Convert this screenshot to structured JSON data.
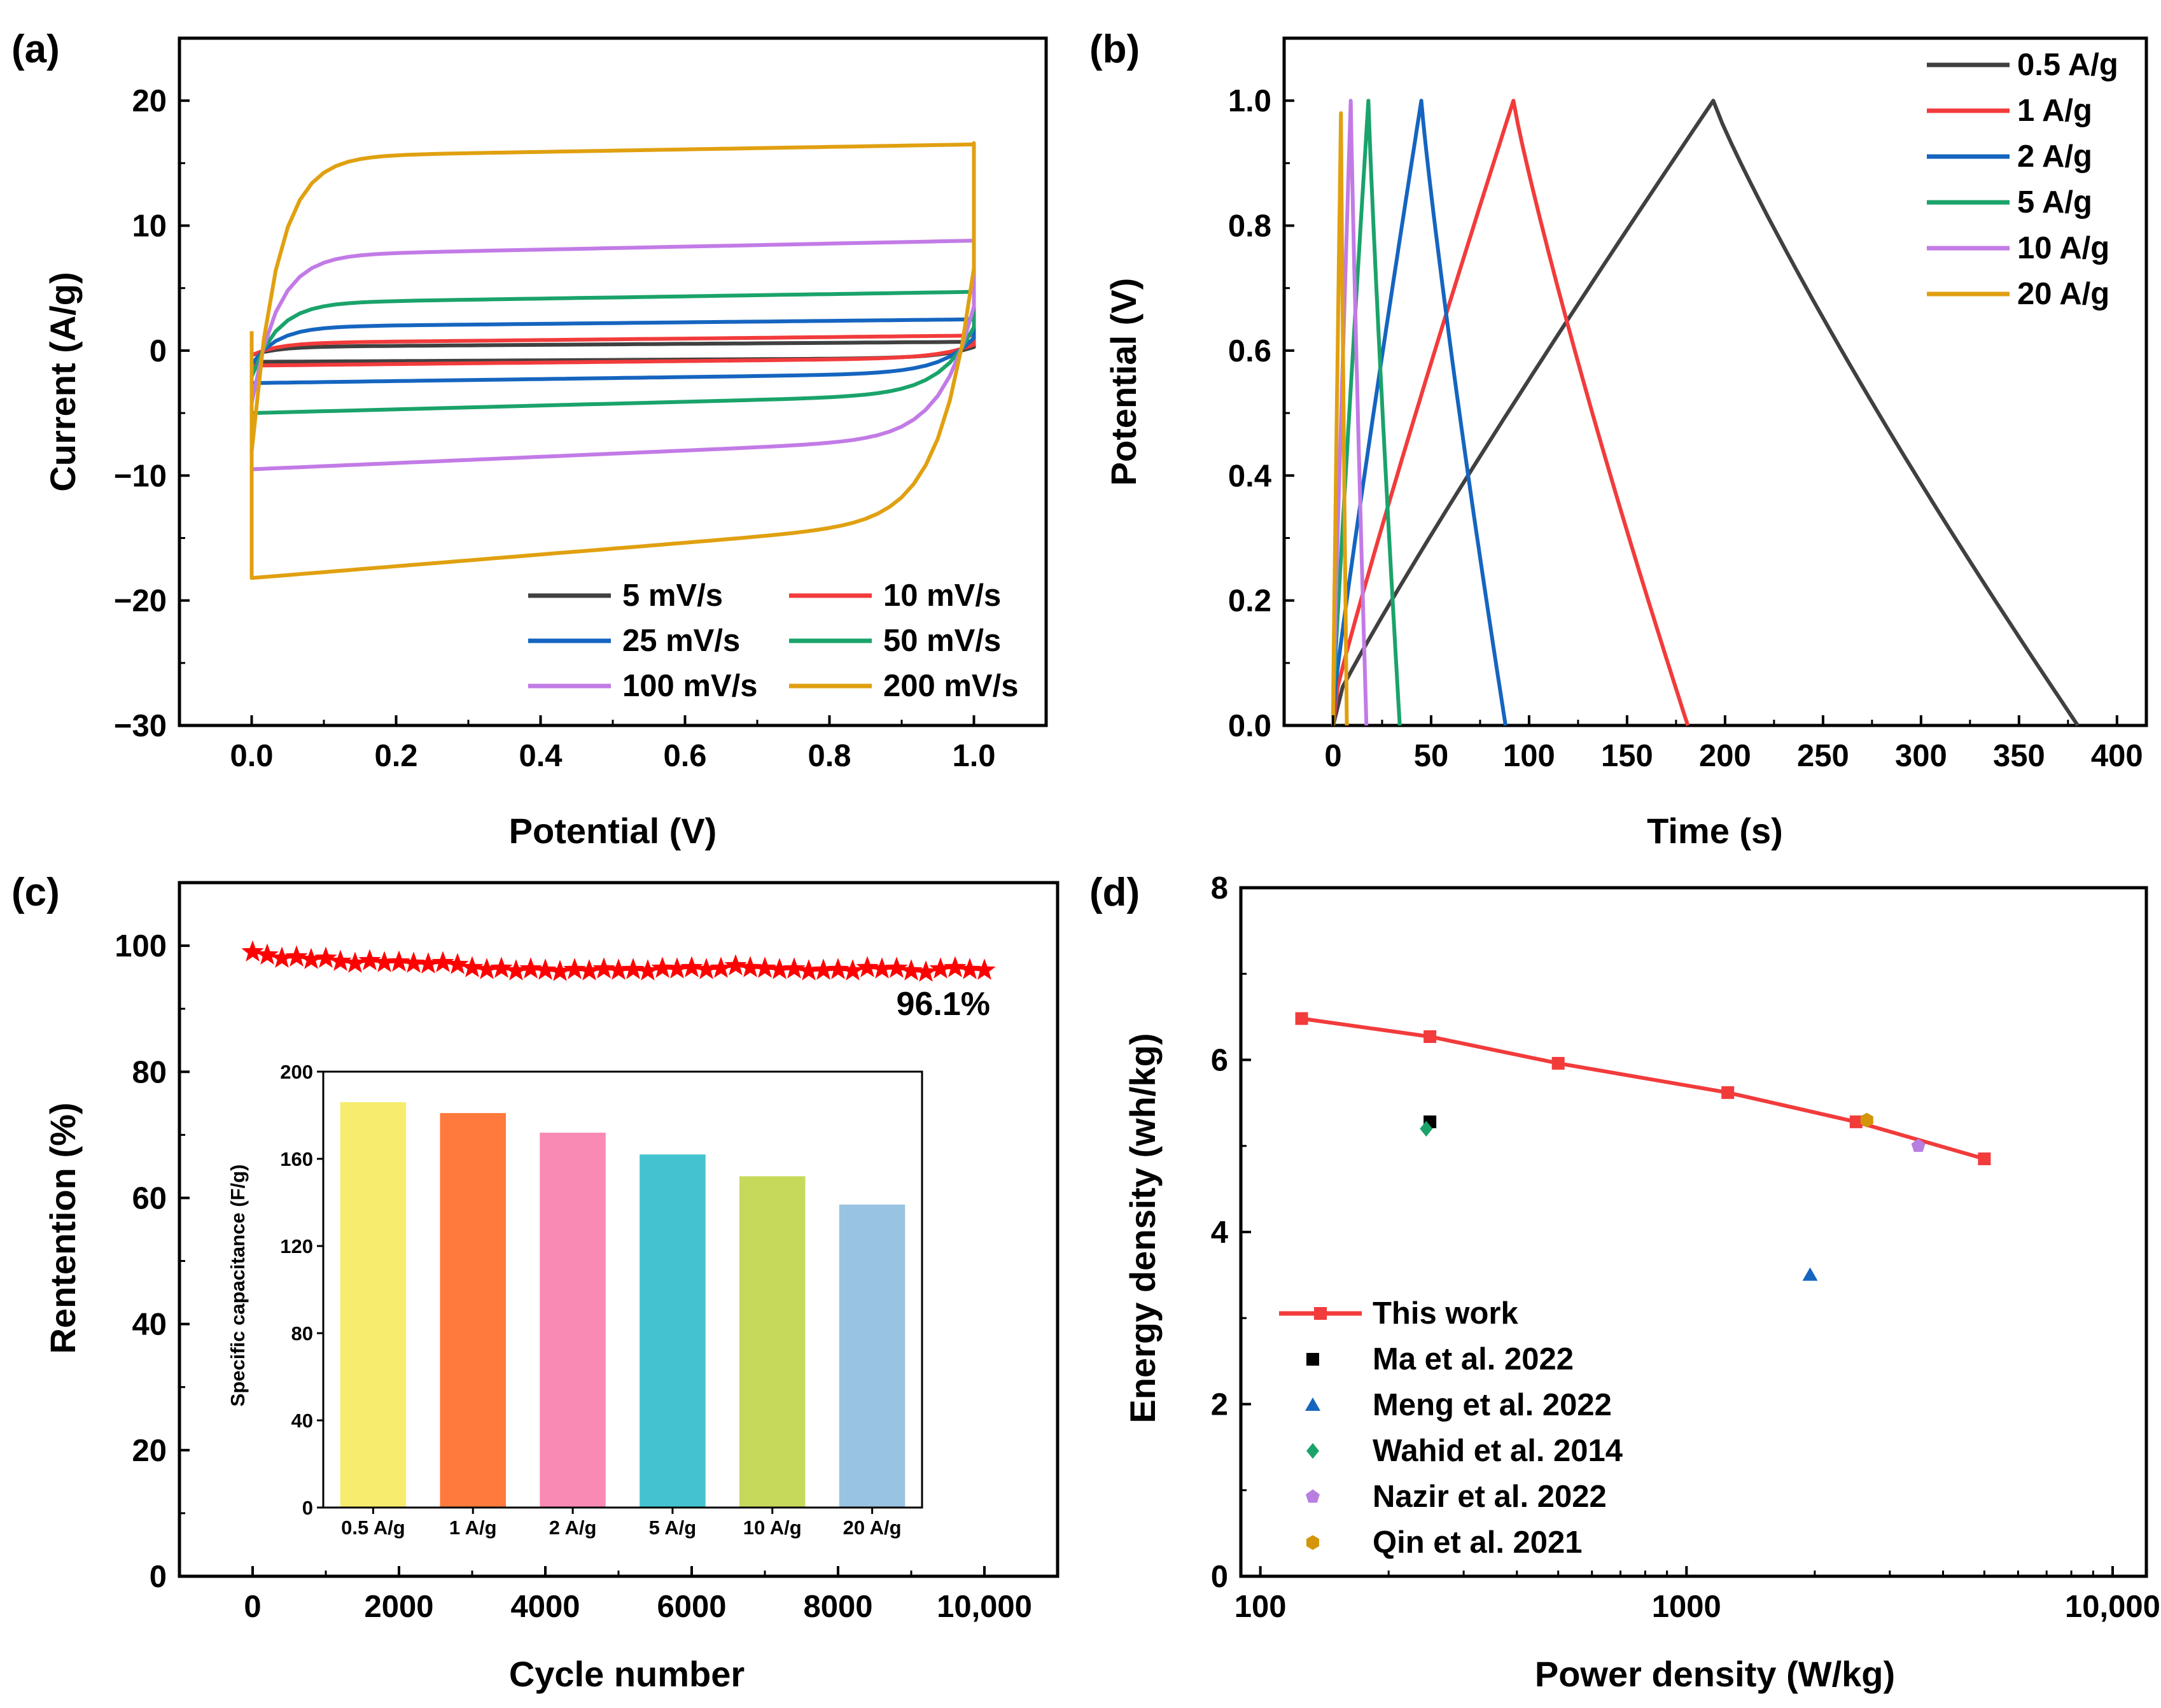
{
  "chart_data": [
    {
      "id": "a",
      "panel_label": "(a)",
      "type": "line",
      "title": "",
      "xlabel": "Potential (V)",
      "ylabel": "Current (A/g)",
      "xlim": [
        -0.1,
        1.1
      ],
      "ylim": [
        -30,
        25
      ],
      "xticks": [
        0.0,
        0.2,
        0.4,
        0.6,
        0.8,
        1.0
      ],
      "xtick_labels": [
        "0.0",
        "0.2",
        "0.4",
        "0.6",
        "0.8",
        "1.0"
      ],
      "yticks": [
        -30,
        -20,
        -10,
        0,
        10,
        20
      ],
      "ytick_labels": [
        "−30",
        "−20",
        "−10",
        "0",
        "10",
        "20"
      ],
      "legend_position": "bottom-right",
      "series": [
        {
          "name": "5 mV/s",
          "color": "#404040",
          "loop": {
            "anodic_start": 0.3,
            "anodic_end": 0.7,
            "cathodic_start": -0.6,
            "cathodic_end": -0.9,
            "peak": 0.9
          }
        },
        {
          "name": "10 mV/s",
          "color": "#f23b3b",
          "loop": {
            "anodic_start": 0.6,
            "anodic_end": 1.2,
            "cathodic_start": -0.6,
            "cathodic_end": -1.2,
            "peak": 1.3
          }
        },
        {
          "name": "25 mV/s",
          "color": "#1565c0",
          "loop": {
            "anodic_start": 1.9,
            "anodic_end": 2.5,
            "cathodic_start": -1.8,
            "cathodic_end": -2.6,
            "peak": 2.6
          }
        },
        {
          "name": "50 mV/s",
          "color": "#1aa36a",
          "loop": {
            "anodic_start": 3.8,
            "anodic_end": 4.7,
            "cathodic_start": -3.5,
            "cathodic_end": -5.0,
            "peak": 4.9
          }
        },
        {
          "name": "100 mV/s",
          "color": "#c27be6",
          "loop": {
            "anodic_start": 7.6,
            "anodic_end": 8.8,
            "cathodic_start": -7.0,
            "cathodic_end": -9.5,
            "peak": 8.9
          }
        },
        {
          "name": "200 mV/s",
          "color": "#e0a010",
          "loop": {
            "anodic_start": 15.5,
            "anodic_end": 16.5,
            "cathodic_start": -13.5,
            "cathodic_end": -18.2,
            "peak": 16.6
          }
        }
      ]
    },
    {
      "id": "b",
      "panel_label": "(b)",
      "type": "line",
      "title": "",
      "xlabel": "Time (s)",
      "ylabel": "Potential (V)",
      "xlim": [
        -25,
        415
      ],
      "ylim": [
        0,
        1.1
      ],
      "xticks": [
        0,
        50,
        100,
        150,
        200,
        250,
        300,
        350,
        400
      ],
      "xtick_labels": [
        "0",
        "50",
        "100",
        "150",
        "200",
        "250",
        "300",
        "350",
        "400"
      ],
      "yticks": [
        0.0,
        0.2,
        0.4,
        0.6,
        0.8,
        1.0
      ],
      "ytick_labels": [
        "0.0",
        "0.2",
        "0.4",
        "0.6",
        "0.8",
        "1.0"
      ],
      "legend_position": "top-right",
      "series": [
        {
          "name": "0.5 A/g",
          "color": "#404040",
          "t_peak": 194,
          "t_end": 380,
          "v_peak": 1.0
        },
        {
          "name": "1 A/g",
          "color": "#f23b3b",
          "t_peak": 92,
          "t_end": 181,
          "v_peak": 1.0
        },
        {
          "name": "2 A/g",
          "color": "#1565c0",
          "t_peak": 45,
          "t_end": 88,
          "v_peak": 1.0
        },
        {
          "name": "5 A/g",
          "color": "#1aa36a",
          "t_peak": 18,
          "t_end": 34,
          "v_peak": 1.0
        },
        {
          "name": "10 A/g",
          "color": "#c27be6",
          "t_peak": 9,
          "t_end": 17,
          "v_peak": 1.0
        },
        {
          "name": "20 A/g",
          "color": "#e0a010",
          "t_peak": 4,
          "t_end": 7,
          "v_peak": 0.98
        }
      ]
    },
    {
      "id": "c",
      "panel_label": "(c)",
      "type": "scatter",
      "title": "",
      "xlabel": "Cycle number",
      "ylabel": "Rentention (%)",
      "xlim": [
        -1000,
        11000
      ],
      "ylim": [
        0,
        110
      ],
      "xticks": [
        0,
        2000,
        4000,
        6000,
        8000,
        10000
      ],
      "xtick_labels": [
        "0",
        "2000",
        "4000",
        "6000",
        "8000",
        "10,000"
      ],
      "yticks": [
        0,
        20,
        40,
        60,
        80,
        100
      ],
      "ytick_labels": [
        "0",
        "20",
        "40",
        "60",
        "80",
        "100"
      ],
      "annotation": "96.1%",
      "series": [
        {
          "name": "Retention",
          "color": "#ff0000",
          "x": [
            0,
            200,
            400,
            600,
            800,
            1000,
            1200,
            1400,
            1600,
            1800,
            2000,
            2200,
            2400,
            2600,
            2800,
            3000,
            3200,
            3400,
            3600,
            3800,
            4000,
            4200,
            4400,
            4600,
            4800,
            5000,
            5200,
            5400,
            5600,
            5800,
            6000,
            6200,
            6400,
            6600,
            6800,
            7000,
            7200,
            7400,
            7600,
            7800,
            8000,
            8200,
            8400,
            8600,
            8800,
            9000,
            9200,
            9400,
            9600,
            9800,
            10000
          ],
          "y": [
            99.0,
            98.5,
            98.0,
            98.2,
            97.8,
            98.0,
            97.5,
            97.2,
            97.6,
            97.3,
            97.4,
            97.2,
            97.1,
            97.3,
            97.0,
            96.5,
            96.2,
            96.4,
            96.0,
            96.3,
            96.1,
            95.9,
            96.2,
            96.0,
            96.3,
            96.1,
            96.2,
            96.0,
            96.4,
            96.3,
            96.5,
            96.2,
            96.4,
            96.8,
            96.5,
            96.4,
            96.2,
            96.3,
            96.0,
            96.1,
            96.2,
            96.0,
            96.5,
            96.3,
            96.4,
            96.0,
            95.8,
            96.3,
            96.5,
            96.2,
            96.1
          ]
        }
      ],
      "inset": {
        "type": "bar",
        "ylabel": "Specific capacitance (F/g)",
        "ylim": [
          0,
          200
        ],
        "yticks": [
          0,
          40,
          80,
          120,
          160,
          200
        ],
        "ytick_labels": [
          "0",
          "40",
          "80",
          "120",
          "160",
          "200"
        ],
        "categories": [
          "0.5 A/g",
          "1 A/g",
          "2 A/g",
          "5 A/g",
          "10 A/g",
          "20 A/g"
        ],
        "values": [
          186,
          181,
          172,
          162,
          152,
          139
        ],
        "colors": [
          "#f7ec6e",
          "#ff7a3c",
          "#f98ab4",
          "#44c2d0",
          "#c7d95a",
          "#98c4e2"
        ]
      }
    },
    {
      "id": "d",
      "panel_label": "(d)",
      "type": "scatter",
      "title": "",
      "xlabel": "Power density (W/kg)",
      "ylabel": "Energy density (wh/kg)",
      "xscale": "log",
      "xlim": [
        90,
        12000
      ],
      "ylim": [
        0,
        8
      ],
      "xticks": [
        100,
        1000,
        10000
      ],
      "xtick_labels": [
        "100",
        "1000",
        "10,000"
      ],
      "yticks": [
        0,
        2,
        4,
        6,
        8
      ],
      "ytick_labels": [
        "0",
        "2",
        "4",
        "6",
        "8"
      ],
      "legend_position": "bottom-left",
      "series": [
        {
          "name": "This work",
          "marker": "square-line",
          "color": "#f23b3b",
          "x": [
            125,
            250,
            500,
            1250,
            2500,
            5000
          ],
          "y": [
            6.48,
            6.27,
            5.96,
            5.62,
            5.28,
            4.85
          ]
        },
        {
          "name": "Ma et al. 2022",
          "marker": "square",
          "color": "#000000",
          "x": [
            250
          ],
          "y": [
            5.28
          ]
        },
        {
          "name": "Meng et al. 2022",
          "marker": "triangle",
          "color": "#1565c0",
          "x": [
            1950
          ],
          "y": [
            3.5
          ]
        },
        {
          "name": "Wahid et al. 2014",
          "marker": "diamond",
          "color": "#1aa36a",
          "x": [
            245
          ],
          "y": [
            5.2
          ]
        },
        {
          "name": "Nazir et al. 2022",
          "marker": "pentagon",
          "color": "#b77ee0",
          "x": [
            3500
          ],
          "y": [
            5.0
          ]
        },
        {
          "name": "Qin et al. 2021",
          "marker": "hexagon",
          "color": "#d4950a",
          "x": [
            2650
          ],
          "y": [
            5.3
          ]
        }
      ]
    }
  ]
}
